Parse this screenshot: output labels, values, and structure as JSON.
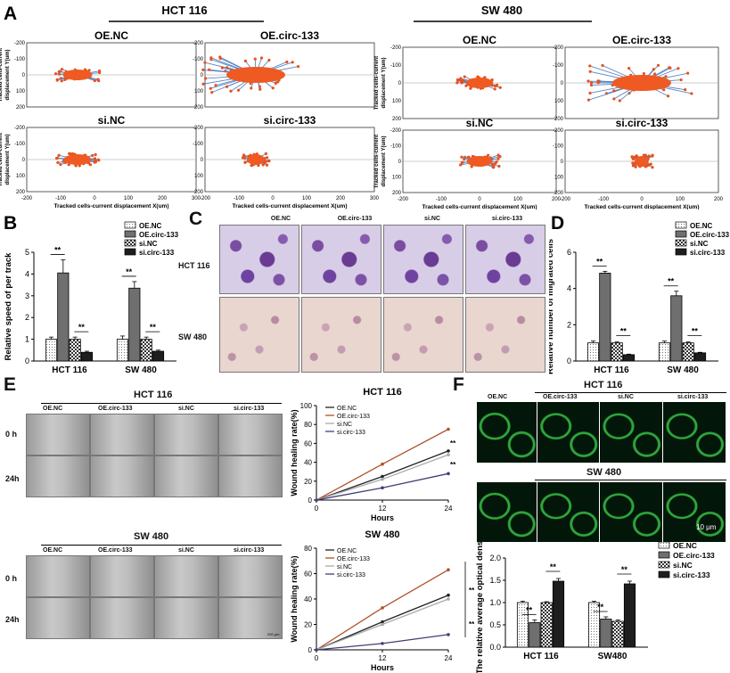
{
  "panelA": {
    "label": "A",
    "groups": [
      "HCT 116",
      "SW 480"
    ],
    "titles": [
      "OE.NC",
      "OE.circ-133",
      "si.NC",
      "si.circ-133"
    ],
    "ylabel1": "Tracked cells-current",
    "ylabel2": "displacement Y(um)",
    "xlabel": "Tracked cells-current displacement X(um)",
    "yticks": [
      "-200",
      "-100",
      "0",
      "100",
      "200"
    ],
    "xticks_hct": [
      "-200",
      "-100",
      "0",
      "100",
      "200",
      "300"
    ],
    "xticks_sw": [
      "-200",
      "-100",
      "0",
      "100",
      "200"
    ]
  },
  "panelB": {
    "label": "B",
    "ylabel": "Relative speed of per track",
    "legend": [
      "OE.NC",
      "OE.circ-133",
      "si.NC",
      "si.circ-133"
    ],
    "sig": "**"
  },
  "panelC": {
    "label": "C",
    "cols": [
      "OE.NC",
      "OE.circ-133",
      "si.NC",
      "si.circ-133"
    ],
    "rows": [
      "HCT 116",
      "SW 480"
    ]
  },
  "panelD": {
    "label": "D",
    "ylabel": "Relative number of migrated cells",
    "legend": [
      "OE.NC",
      "OE.circ-133",
      "si.NC",
      "si.circ-133"
    ]
  },
  "panelE": {
    "label": "E",
    "group1": "HCT 116",
    "group2": "SW 480",
    "cols": [
      "OE.NC",
      "OE.circ-133",
      "si.NC",
      "si.circ-133"
    ],
    "rows": [
      "0 h",
      "24h"
    ],
    "scale": "200 μm",
    "line_ylabel": "Wound healing rate(%)",
    "line_xlabel": "Hours",
    "legend": [
      "OE.NC",
      "OE.circ-133",
      "si.NC",
      "si.circ-133"
    ]
  },
  "panelF": {
    "label": "F",
    "group1": "HCT 116",
    "group2": "SW 480",
    "cols": [
      "OE.NC",
      "OE.circ-133",
      "si.NC",
      "si.circ-133"
    ],
    "scale": "10 μm",
    "ylabel": "The relative average optical density",
    "legend": [
      "OE.NC",
      "OE.circ-133",
      "si.NC",
      "si.circ-133"
    ]
  },
  "chart_data": [
    {
      "type": "bar",
      "panel": "B",
      "categories": [
        "HCT 116",
        "SW 480"
      ],
      "series": [
        {
          "name": "OE.NC",
          "values": [
            1.0,
            1.0
          ]
        },
        {
          "name": "OE.circ-133",
          "values": [
            4.05,
            3.35
          ]
        },
        {
          "name": "si.NC",
          "values": [
            1.0,
            1.0
          ]
        },
        {
          "name": "si.circ-133",
          "values": [
            0.4,
            0.45
          ]
        }
      ],
      "errors": [
        [
          0.1,
          0.15
        ],
        [
          0.6,
          0.3
        ],
        [
          0.1,
          0.1
        ],
        [
          0.05,
          0.05
        ]
      ],
      "ylabel": "Relative speed of per track",
      "ylim": [
        0,
        5
      ],
      "yticks": [
        "0",
        "1",
        "2",
        "3",
        "4",
        "5"
      ],
      "colors": [
        "#ffffff",
        "#777777",
        "#eeeeee",
        "#222222"
      ]
    },
    {
      "type": "bar",
      "panel": "D",
      "categories": [
        "HCT 116",
        "SW 480"
      ],
      "series": [
        {
          "name": "OE.NC",
          "values": [
            1.0,
            1.0
          ]
        },
        {
          "name": "OE.circ-133",
          "values": [
            4.85,
            3.6
          ]
        },
        {
          "name": "si.NC",
          "values": [
            1.0,
            1.0
          ]
        },
        {
          "name": "si.circ-133",
          "values": [
            0.35,
            0.45
          ]
        }
      ],
      "errors": [
        [
          0.1,
          0.1
        ],
        [
          0.1,
          0.25
        ],
        [
          0.05,
          0.05
        ],
        [
          0.03,
          0.03
        ]
      ],
      "ylabel": "Relative number of migrated cells",
      "ylim": [
        0,
        6
      ],
      "yticks": [
        "0",
        "2",
        "4",
        "6"
      ],
      "colors": [
        "#ffffff",
        "#777777",
        "#eeeeee",
        "#222222"
      ]
    },
    {
      "type": "line",
      "panel": "E-HCT 116",
      "title": "HCT 116",
      "x": [
        0,
        12,
        24
      ],
      "series": [
        {
          "name": "OE.NC",
          "values": [
            0,
            25,
            52
          ]
        },
        {
          "name": "OE.circ-133",
          "values": [
            0,
            38,
            75
          ]
        },
        {
          "name": "si.NC",
          "values": [
            0,
            22,
            48
          ]
        },
        {
          "name": "si.circ-133",
          "values": [
            0,
            13,
            28
          ]
        }
      ],
      "xlabel": "Hours",
      "ylabel": "Wound healing rate(%)",
      "ylim": [
        0,
        100
      ],
      "xlim": [
        0,
        24
      ],
      "yticks": [
        "0",
        "20",
        "40",
        "60",
        "80",
        "100"
      ],
      "xticks": [
        "0",
        "12",
        "24"
      ],
      "colors": [
        "#222222",
        "#b0522a",
        "#aaaaaa",
        "#3f3f7a"
      ]
    },
    {
      "type": "line",
      "panel": "E-SW 480",
      "title": "SW 480",
      "x": [
        0,
        12,
        24
      ],
      "series": [
        {
          "name": "OE.NC",
          "values": [
            0,
            22,
            43
          ]
        },
        {
          "name": "OE.circ-133",
          "values": [
            0,
            33,
            63
          ]
        },
        {
          "name": "si.NC",
          "values": [
            0,
            20,
            40
          ]
        },
        {
          "name": "si.circ-133",
          "values": [
            0,
            5,
            12
          ]
        }
      ],
      "xlabel": "Hours",
      "ylabel": "Wound healing rate(%)",
      "ylim": [
        0,
        80
      ],
      "xlim": [
        0,
        24
      ],
      "yticks": [
        "0",
        "20",
        "40",
        "60",
        "80"
      ],
      "xticks": [
        "0",
        "12",
        "24"
      ],
      "colors": [
        "#222222",
        "#b0522a",
        "#aaaaaa",
        "#3f3f7a"
      ]
    },
    {
      "type": "bar",
      "panel": "F",
      "categories": [
        "HCT 116",
        "SW480"
      ],
      "series": [
        {
          "name": "OE.NC",
          "values": [
            1.0,
            1.0
          ]
        },
        {
          "name": "OE.circ-133",
          "values": [
            0.55,
            0.63
          ]
        },
        {
          "name": "si.NC",
          "values": [
            1.0,
            0.58
          ]
        },
        {
          "name": "si.circ-133",
          "values": [
            1.48,
            1.42
          ]
        }
      ],
      "errors": [
        [
          0.03,
          0.03
        ],
        [
          0.06,
          0.05
        ],
        [
          0.02,
          0.03
        ],
        [
          0.06,
          0.06
        ]
      ],
      "ylabel": "The relative average optical density",
      "ylim": [
        0,
        2.0
      ],
      "yticks": [
        "0.0",
        "0.5",
        "1.0",
        "1.5",
        "2.0"
      ],
      "colors": [
        "#ffffff",
        "#777777",
        "#eeeeee",
        "#222222"
      ]
    }
  ]
}
